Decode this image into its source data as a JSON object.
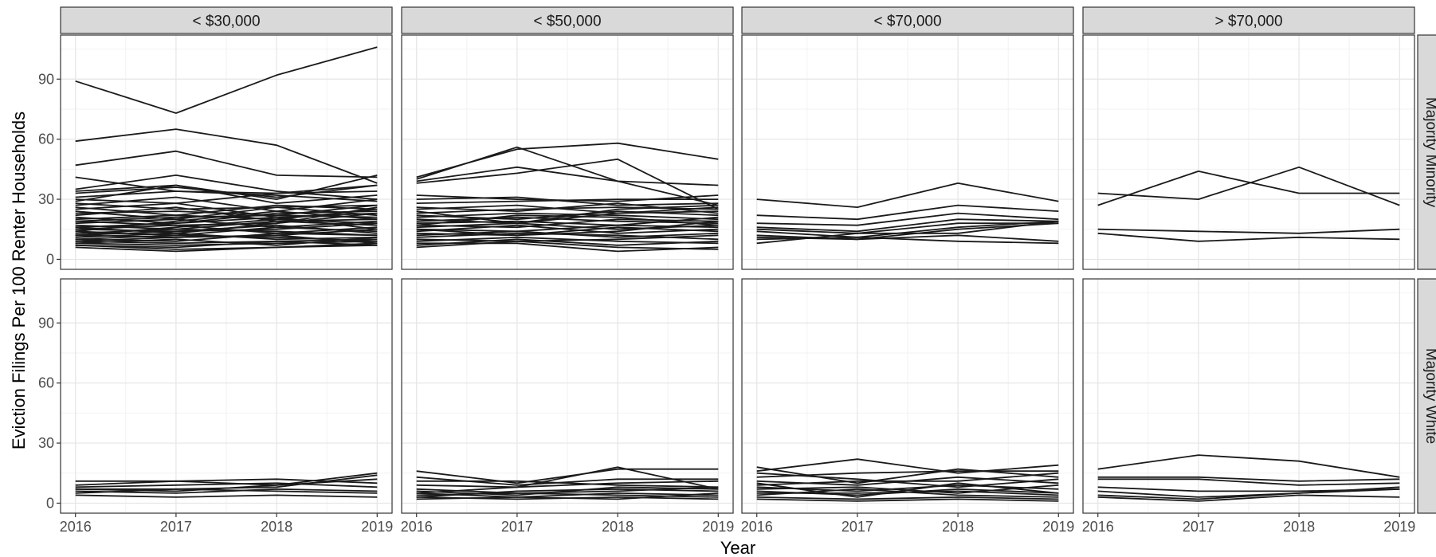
{
  "chart_data": {
    "type": "line",
    "layout": "facet-grid",
    "xlabel": "Year",
    "ylabel": "Eviction Filings Per 100 Renter Households",
    "x": [
      2016,
      2017,
      2018,
      2019
    ],
    "x_ticks": [
      "2016",
      "2017",
      "2018",
      "2019"
    ],
    "y_ticks": [
      "0",
      "30",
      "60",
      "90"
    ],
    "ylim": [
      -5,
      112
    ],
    "grid": true,
    "line_color": "#1a1a1a",
    "column_facets": [
      "< $30,000",
      "< $50,000",
      "< $70,000",
      "> $70,000"
    ],
    "row_facets": [
      "Majority Minority",
      "Majority White"
    ],
    "panels": [
      {
        "row": 0,
        "col": 0,
        "series": [
          [
            89,
            73,
            92,
            106
          ],
          [
            59,
            65,
            57,
            38
          ],
          [
            47,
            54,
            42,
            41
          ],
          [
            41,
            34,
            33,
            37
          ],
          [
            35,
            42,
            34,
            30
          ],
          [
            34,
            37,
            30,
            42
          ],
          [
            33,
            36,
            31,
            37
          ],
          [
            31,
            34,
            32,
            29
          ],
          [
            30,
            28,
            33,
            34
          ],
          [
            29,
            37,
            28,
            32
          ],
          [
            28,
            25,
            26,
            27
          ],
          [
            27,
            31,
            24,
            30
          ],
          [
            26,
            22,
            27,
            25
          ],
          [
            25,
            28,
            21,
            23
          ],
          [
            24,
            20,
            26,
            22
          ],
          [
            23,
            24,
            22,
            27
          ],
          [
            22,
            26,
            19,
            20
          ],
          [
            21,
            18,
            23,
            24
          ],
          [
            20,
            22,
            20,
            18
          ],
          [
            19,
            21,
            22,
            21
          ],
          [
            19,
            17,
            18,
            23
          ],
          [
            18,
            20,
            16,
            19
          ],
          [
            17,
            15,
            19,
            17
          ],
          [
            16,
            18,
            21,
            15
          ],
          [
            15,
            14,
            15,
            18
          ],
          [
            15,
            17,
            13,
            16
          ],
          [
            14,
            12,
            16,
            14
          ],
          [
            13,
            15,
            14,
            12
          ],
          [
            12,
            11,
            12,
            15
          ],
          [
            12,
            14,
            17,
            13
          ],
          [
            11,
            13,
            10,
            11
          ],
          [
            10,
            9,
            13,
            12
          ],
          [
            10,
            12,
            11,
            9
          ],
          [
            9,
            8,
            9,
            10
          ],
          [
            9,
            11,
            12,
            8
          ],
          [
            8,
            7,
            8,
            9
          ],
          [
            8,
            10,
            7,
            11
          ],
          [
            7,
            6,
            9,
            7
          ],
          [
            7,
            5,
            6,
            8
          ],
          [
            6,
            4,
            6,
            7
          ],
          [
            12,
            16,
            20,
            25
          ],
          [
            14,
            19,
            24,
            20
          ],
          [
            16,
            13,
            18,
            26
          ]
        ]
      },
      {
        "row": 0,
        "col": 1,
        "series": [
          [
            41,
            55,
            58,
            50
          ],
          [
            40,
            56,
            39,
            27
          ],
          [
            39,
            46,
            39,
            37
          ],
          [
            38,
            43,
            50,
            25
          ],
          [
            32,
            30,
            29,
            32
          ],
          [
            30,
            31,
            27,
            28
          ],
          [
            28,
            29,
            30,
            30
          ],
          [
            26,
            24,
            28,
            23
          ],
          [
            25,
            27,
            23,
            26
          ],
          [
            23,
            25,
            26,
            25
          ],
          [
            22,
            20,
            24,
            22
          ],
          [
            21,
            23,
            22,
            20
          ],
          [
            20,
            18,
            23,
            24
          ],
          [
            19,
            21,
            19,
            18
          ],
          [
            18,
            19,
            17,
            21
          ],
          [
            17,
            16,
            20,
            19
          ],
          [
            16,
            18,
            15,
            17
          ],
          [
            15,
            14,
            17,
            16
          ],
          [
            14,
            17,
            13,
            15
          ],
          [
            13,
            12,
            16,
            14
          ],
          [
            12,
            14,
            11,
            13
          ],
          [
            11,
            13,
            12,
            10
          ],
          [
            10,
            9,
            10,
            12
          ],
          [
            9,
            11,
            9,
            8
          ],
          [
            8,
            8,
            4,
            6
          ],
          [
            7,
            10,
            7,
            9
          ],
          [
            6,
            9,
            6,
            5
          ],
          [
            17,
            22,
            21,
            17
          ],
          [
            15,
            12,
            14,
            19
          ],
          [
            24,
            18,
            25,
            27
          ]
        ]
      },
      {
        "row": 0,
        "col": 2,
        "series": [
          [
            30,
            26,
            38,
            29
          ],
          [
            22,
            20,
            27,
            24
          ],
          [
            18,
            17,
            23,
            20
          ],
          [
            16,
            14,
            20,
            19
          ],
          [
            15,
            13,
            18,
            18
          ],
          [
            14,
            11,
            16,
            19
          ],
          [
            12,
            10,
            15,
            18
          ],
          [
            11,
            10,
            12,
            9
          ],
          [
            10,
            11,
            9,
            8
          ],
          [
            8,
            13,
            13,
            19
          ]
        ]
      },
      {
        "row": 0,
        "col": 3,
        "series": [
          [
            33,
            30,
            46,
            27
          ],
          [
            27,
            44,
            33,
            33
          ],
          [
            15,
            14,
            13,
            15
          ],
          [
            13,
            9,
            11,
            10
          ]
        ]
      },
      {
        "row": 1,
        "col": 0,
        "series": [
          [
            11,
            11,
            12,
            10
          ],
          [
            9,
            11,
            9,
            15
          ],
          [
            8,
            9,
            10,
            8
          ],
          [
            7,
            7,
            8,
            14
          ],
          [
            6,
            5,
            7,
            6
          ],
          [
            5,
            7,
            6,
            5
          ],
          [
            4,
            3,
            4,
            3
          ],
          [
            7,
            6,
            9,
            12
          ]
        ]
      },
      {
        "row": 1,
        "col": 1,
        "series": [
          [
            16,
            10,
            17,
            17
          ],
          [
            13,
            9,
            12,
            12
          ],
          [
            11,
            11,
            9,
            8
          ],
          [
            9,
            8,
            10,
            11
          ],
          [
            7,
            5,
            6,
            8
          ],
          [
            6,
            4,
            8,
            7
          ],
          [
            5,
            3,
            5,
            4
          ],
          [
            4,
            5,
            4,
            3
          ],
          [
            3,
            2,
            3,
            2
          ],
          [
            2,
            3,
            2,
            5
          ],
          [
            5,
            8,
            18,
            7
          ],
          [
            3,
            6,
            7,
            6
          ]
        ]
      },
      {
        "row": 1,
        "col": 2,
        "series": [
          [
            18,
            10,
            17,
            13
          ],
          [
            16,
            22,
            15,
            19
          ],
          [
            13,
            15,
            16,
            16
          ],
          [
            11,
            9,
            13,
            10
          ],
          [
            9,
            11,
            11,
            15
          ],
          [
            8,
            6,
            9,
            7
          ],
          [
            7,
            8,
            5,
            9
          ],
          [
            6,
            4,
            7,
            5
          ],
          [
            5,
            5,
            6,
            4
          ],
          [
            4,
            7,
            4,
            3
          ],
          [
            3,
            2,
            3,
            2
          ],
          [
            2,
            1,
            2,
            1
          ],
          [
            15,
            12,
            8,
            12
          ],
          [
            10,
            3,
            10,
            5
          ]
        ]
      },
      {
        "row": 1,
        "col": 3,
        "series": [
          [
            17,
            24,
            21,
            13
          ],
          [
            13,
            13,
            11,
            12
          ],
          [
            12,
            12,
            9,
            10
          ],
          [
            8,
            6,
            6,
            7
          ],
          [
            6,
            3,
            5,
            8
          ],
          [
            4,
            2,
            5,
            7
          ],
          [
            3,
            1,
            4,
            3
          ]
        ]
      }
    ]
  }
}
